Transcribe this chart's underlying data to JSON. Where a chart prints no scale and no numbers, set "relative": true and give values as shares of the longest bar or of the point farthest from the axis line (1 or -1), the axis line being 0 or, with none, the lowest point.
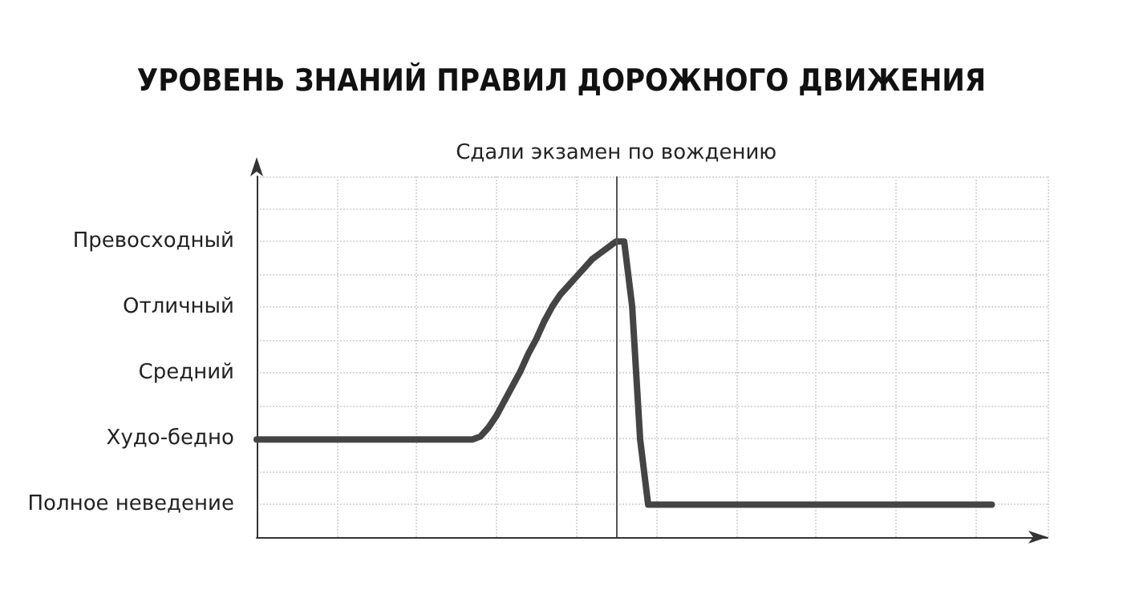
{
  "chart_data": {
    "type": "line",
    "title": "УРОВЕНЬ ЗНАНИЙ ПРАВИЛ ДОРОЖНОГО ДВИЖЕНИЯ",
    "categories": [
      null,
      null,
      null,
      null,
      null,
      null,
      null,
      null,
      null,
      null,
      null,
      null,
      null,
      null,
      null,
      null,
      null,
      null,
      null,
      null,
      null,
      null,
      null,
      null,
      null,
      null,
      null,
      null,
      null,
      null,
      null,
      null,
      null,
      null,
      null,
      null,
      null,
      null,
      null,
      null,
      null,
      null,
      null,
      null,
      null,
      null,
      null,
      null,
      null,
      null,
      null,
      null,
      null,
      null,
      null,
      null,
      null,
      null,
      null,
      null,
      null,
      null,
      null,
      null,
      null,
      null,
      null,
      null,
      null,
      null,
      null,
      null,
      null,
      null,
      null,
      null,
      null,
      null,
      null,
      null,
      null,
      null,
      null,
      null,
      null,
      null,
      null,
      null,
      null,
      null,
      null,
      null,
      null,
      null,
      null,
      null,
      null,
      null,
      null,
      null
    ],
    "series": [
      {
        "color": "#444444",
        "values": [
          0.33,
          0.33,
          0.33,
          0.33,
          0.33,
          0.33,
          0.33,
          0.33,
          0.33,
          0.33,
          0.33,
          0.33,
          0.33,
          0.33,
          0.33,
          0.33,
          0.33,
          0.33,
          0.33,
          0.33,
          0.33,
          0.33,
          0.33,
          0.33,
          0.33,
          0.33,
          0.33,
          0.33,
          0.34,
          0.37,
          0.41,
          0.46,
          0.51,
          0.56,
          0.62,
          0.67,
          0.73,
          0.78,
          0.82,
          0.85,
          0.88,
          0.91,
          0.94,
          0.96,
          0.98,
          1,
          1,
          0.78,
          0.33,
          0.11,
          0.11,
          0.11,
          0.11,
          0.11,
          0.11,
          0.11,
          0.11,
          0.11,
          0.11,
          0.11,
          0.11,
          0.11,
          0.11,
          0.11,
          0.11,
          0.11,
          0.11,
          0.11,
          0.11,
          0.11,
          0.11,
          0.11,
          0.11,
          0.11,
          0.11,
          0.11,
          0.11,
          0.11,
          0.11,
          0.11,
          0.11,
          0.11,
          0.11,
          0.11,
          0.11,
          0.11,
          0.11,
          0.11,
          0.11,
          0.11,
          0.11,
          0.11,
          0.11,
          null,
          null,
          null,
          null,
          null,
          null,
          null
        ]
      }
    ],
    "relative": true,
    "annotations": [
      "Сдали экзамен по вождению",
      "Превосходный",
      "Отличный",
      "Средний",
      "Худо-бедно",
      "Полное неведение"
    ],
    "tick_labels": "y",
    "grid": true,
    "line_style": "solid"
  }
}
